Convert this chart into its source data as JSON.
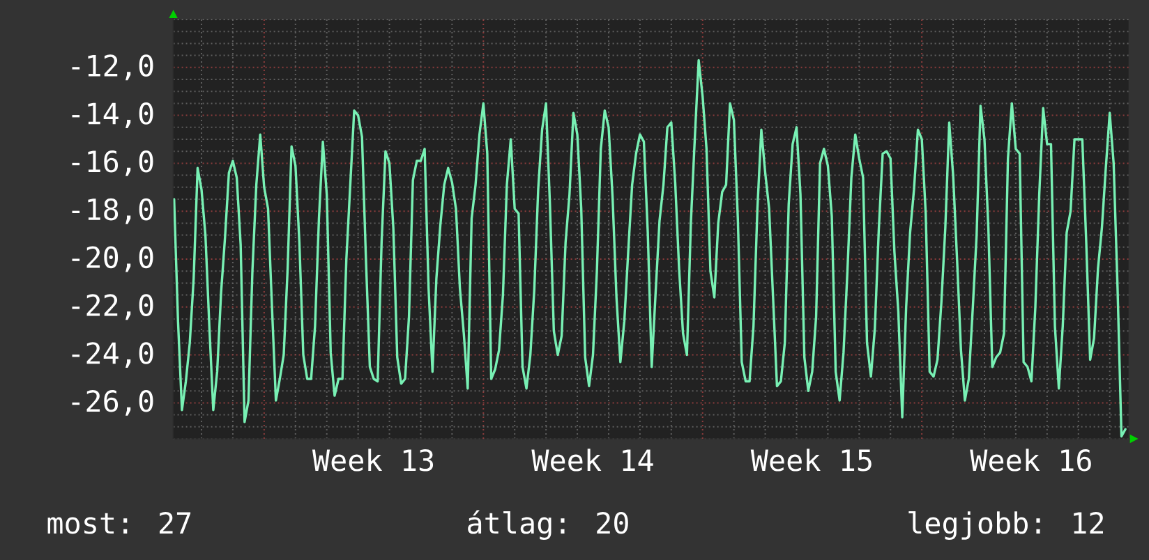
{
  "chart_data": {
    "type": "line",
    "color": "#78f0b4",
    "categories": [
      null,
      null,
      null,
      null,
      null,
      null,
      null,
      null,
      null,
      null,
      null,
      null,
      null,
      null,
      null,
      null,
      null,
      null,
      null,
      null,
      null,
      null,
      null,
      null,
      null,
      null,
      null,
      null,
      null,
      null,
      null,
      null,
      null,
      null,
      null,
      null,
      null,
      null,
      null,
      null,
      null,
      null,
      null,
      null,
      null,
      null,
      null,
      null,
      null,
      null,
      null,
      "Week 13",
      null,
      null,
      null,
      null,
      null,
      null,
      null,
      null,
      null,
      null,
      null,
      null,
      null,
      null,
      null,
      null,
      null,
      null,
      null,
      null,
      null,
      null,
      null,
      null,
      null,
      null,
      null,
      null,
      null,
      null,
      null,
      null,
      null,
      null,
      null,
      null,
      null,
      null,
      null,
      null,
      null,
      null,
      null,
      null,
      null,
      null,
      null,
      null,
      null,
      null,
      null,
      null,
      null,
      null,
      null,
      "Week 14",
      null,
      null,
      null,
      null,
      null,
      null,
      null,
      null,
      null,
      null,
      null,
      null,
      null,
      null,
      null,
      null,
      null,
      null,
      null,
      null,
      null,
      null,
      null,
      null,
      null,
      null,
      null,
      null,
      null,
      null,
      null,
      null,
      null,
      null,
      null,
      null,
      null,
      null,
      null,
      null,
      null,
      null,
      null,
      null,
      null,
      null,
      null,
      null,
      null,
      null,
      null,
      null,
      null,
      null,
      null,
      "Week 15",
      null,
      null,
      null,
      null,
      null,
      null,
      null,
      null,
      null,
      null,
      null,
      null,
      null,
      null,
      null,
      null,
      null,
      null,
      null,
      null,
      null,
      null,
      null,
      null,
      null,
      null,
      null,
      null,
      null,
      null,
      null,
      null,
      null,
      null,
      null,
      null,
      null,
      null,
      null,
      null,
      null,
      null,
      null,
      null,
      null,
      null,
      null,
      null,
      null,
      null,
      null,
      null,
      null,
      null,
      null,
      "Week 16",
      null,
      null,
      null,
      null,
      null,
      null,
      null,
      null,
      null,
      null,
      null,
      null,
      null,
      null,
      null,
      null,
      null,
      null,
      null,
      null,
      null,
      null,
      null,
      null
    ],
    "values": [
      -17.5,
      -22.6,
      -26.3,
      -25.1,
      -23.5,
      -20.8,
      -16.2,
      -17.1,
      -19.0,
      -22.8,
      -26.3,
      -24.7,
      -21.4,
      -19.1,
      -16.4,
      -15.9,
      -16.6,
      -19.4,
      -26.8,
      -25.9,
      -20.5,
      -16.9,
      -14.8,
      -17.0,
      -17.9,
      -22.0,
      -25.9,
      -25.0,
      -24.0,
      -20.4,
      -15.3,
      -16.1,
      -19.3,
      -24.0,
      -25.0,
      -25.0,
      -22.8,
      -18.3,
      -15.1,
      -17.3,
      -23.9,
      -25.7,
      -25.0,
      -25.0,
      -20.0,
      -16.9,
      -13.8,
      -14.0,
      -14.9,
      -20.0,
      -24.5,
      -25.0,
      -25.1,
      -19.3,
      -15.5,
      -16.0,
      -18.7,
      -24.1,
      -25.2,
      -25.0,
      -22.4,
      -16.7,
      -15.9,
      -15.9,
      -15.4,
      -21.2,
      -24.7,
      -20.8,
      -18.6,
      -16.9,
      -16.2,
      -16.8,
      -17.9,
      -21.2,
      -23.1,
      -25.4,
      -18.3,
      -16.9,
      -14.8,
      -13.5,
      -15.6,
      -25.0,
      -24.6,
      -23.8,
      -21.5,
      -16.9,
      -15.0,
      -17.9,
      -18.1,
      -24.5,
      -25.4,
      -24.0,
      -21.3,
      -17.1,
      -14.6,
      -13.5,
      -17.7,
      -23.0,
      -24.0,
      -23.2,
      -19.3,
      -17.3,
      -13.9,
      -14.8,
      -17.9,
      -24.1,
      -25.3,
      -24.0,
      -20.5,
      -15.4,
      -13.8,
      -14.5,
      -17.4,
      -21.6,
      -24.3,
      -22.6,
      -19.7,
      -16.9,
      -15.6,
      -14.8,
      -15.1,
      -18.9,
      -24.5,
      -21.4,
      -18.4,
      -16.9,
      -14.5,
      -14.3,
      -16.8,
      -20.4,
      -23.1,
      -24.0,
      -18.5,
      -15.0,
      -11.7,
      -13.2,
      -15.4,
      -20.5,
      -21.6,
      -18.5,
      -17.2,
      -16.9,
      -13.5,
      -14.2,
      -18.3,
      -24.3,
      -25.1,
      -25.1,
      -22.8,
      -17.9,
      -14.6,
      -16.4,
      -17.9,
      -21.6,
      -25.3,
      -25.1,
      -23.5,
      -17.7,
      -15.2,
      -14.5,
      -17.3,
      -24.1,
      -25.5,
      -24.7,
      -22.4,
      -16.0,
      -15.4,
      -16.1,
      -18.2,
      -24.7,
      -25.9,
      -23.9,
      -20.5,
      -16.6,
      -14.8,
      -15.8,
      -16.6,
      -23.5,
      -24.9,
      -22.9,
      -18.8,
      -15.6,
      -15.5,
      -15.8,
      -19.7,
      -22.2,
      -26.6,
      -22.0,
      -18.9,
      -17.1,
      -14.6,
      -15.0,
      -18.1,
      -24.7,
      -24.9,
      -24.2,
      -21.8,
      -18.7,
      -14.3,
      -16.5,
      -20.0,
      -23.8,
      -25.9,
      -25.0,
      -22.1,
      -19.0,
      -13.6,
      -15.0,
      -18.7,
      -24.5,
      -24.1,
      -23.9,
      -23.1,
      -15.8,
      -13.5,
      -15.4,
      -15.6,
      -24.3,
      -24.5,
      -25.1,
      -22.0,
      -17.3,
      -13.7,
      -15.2,
      -15.2,
      -22.8,
      -25.4,
      -22.8,
      -18.9,
      -18.0,
      -15.0,
      -15.0,
      -15.0,
      -19.3,
      -24.2,
      -23.3,
      -20.4,
      -18.7,
      -16.2,
      -13.9,
      -16.0,
      -21.2,
      -27.4,
      -27.1
    ],
    "ylim": [
      -27.5,
      -10.0
    ],
    "yticks": [
      {
        "value": -26,
        "label": "-26,0"
      },
      {
        "value": -24,
        "label": "-24,0"
      },
      {
        "value": -22,
        "label": "-22,0"
      },
      {
        "value": -20,
        "label": "-20,0"
      },
      {
        "value": -18,
        "label": "-18,0"
      },
      {
        "value": -16,
        "label": "-16,0"
      },
      {
        "value": -14,
        "label": "-14,0"
      },
      {
        "value": -12,
        "label": "-12,0"
      }
    ],
    "grid": true,
    "annotations": [
      "most: 27",
      "átlag: 20",
      "legjobb: 12"
    ]
  }
}
